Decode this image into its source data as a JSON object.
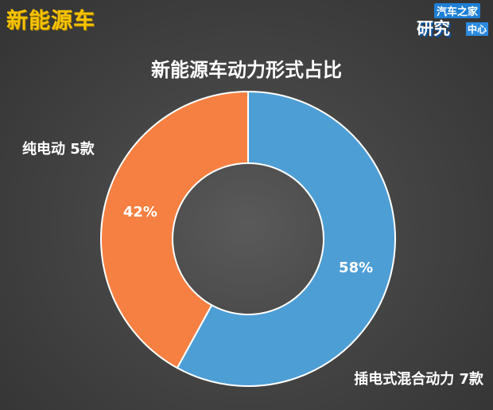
{
  "header": {
    "title": "新能源车"
  },
  "logo": {
    "top": "汽车之家",
    "main": "研究",
    "sub": "中心"
  },
  "chart_data": {
    "type": "pie",
    "donut": true,
    "title": "新能源车动力形式占比",
    "slices": [
      {
        "name": "插电式混合动力",
        "count_label": "7款",
        "value": 58,
        "label": "58%",
        "color": "#4e9ed6"
      },
      {
        "name": "纯电动",
        "count_label": "5款",
        "value": 42,
        "label": "42%",
        "color": "#f68042"
      }
    ],
    "legend": "none"
  }
}
